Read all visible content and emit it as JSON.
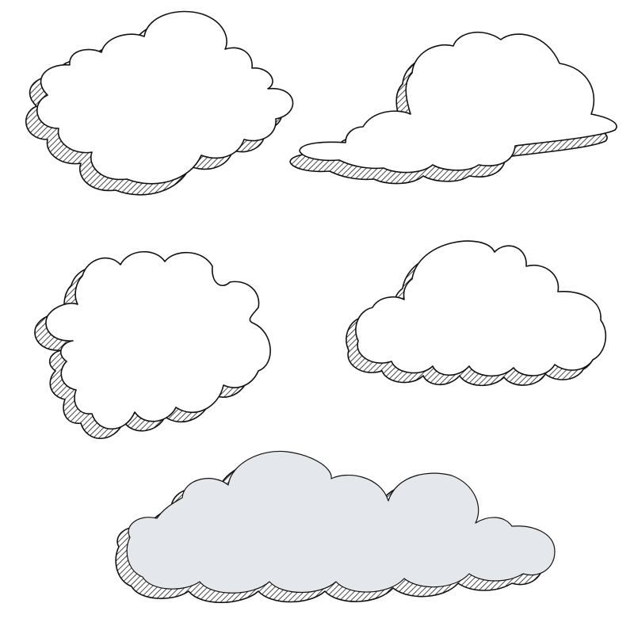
{
  "colors": {
    "background": "#ffffff",
    "outline": "#111111",
    "hatch": "#1a1a1a",
    "cloud_fill_default": "#ffffff",
    "cloud_fill_tinted": "#e4e7ec"
  },
  "clouds": [
    {
      "name": "cloud-1",
      "style": "sketch",
      "fill": "white"
    },
    {
      "name": "cloud-2",
      "style": "sketch",
      "fill": "white"
    },
    {
      "name": "cloud-3",
      "style": "sketch",
      "fill": "white"
    },
    {
      "name": "cloud-4",
      "style": "sketch",
      "fill": "white"
    },
    {
      "name": "cloud-5",
      "style": "sketch",
      "fill": "light-gray-blue"
    }
  ]
}
